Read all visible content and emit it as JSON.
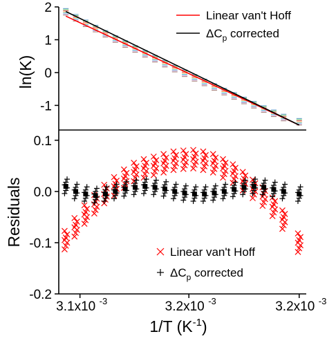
{
  "chart_data": [
    {
      "type": "line",
      "panel": "top",
      "ylabel": "ln(K)",
      "xlabel": "",
      "ylim": [
        -1.75,
        2.0
      ],
      "yticks": [
        -1,
        0,
        1,
        2
      ],
      "ytick_labels": [
        "-1",
        "0",
        "1",
        "2"
      ],
      "grid": false,
      "legend_position": "top-right",
      "series": [
        {
          "name": "Linear van't Hoff",
          "kind": "fit-line",
          "color": "#ff0000",
          "x": [
            0.003085,
            0.00325
          ],
          "y": [
            1.72,
            -1.6
          ]
        },
        {
          "name": "ΔCₚ corrected",
          "legend_main": "ΔC",
          "legend_sub": "p",
          "legend_tail": " corrected",
          "kind": "fit-line",
          "color": "#000000",
          "x": [
            0.003085,
            0.00325
          ],
          "y": [
            1.86,
            -1.6
          ]
        }
      ],
      "data_points": {
        "x": [
          0.003085,
          0.003092,
          0.003099,
          0.003106,
          0.003113,
          0.00312,
          0.003127,
          0.003134,
          0.003141,
          0.003148,
          0.003155,
          0.003162,
          0.003169,
          0.003176,
          0.003183,
          0.00319,
          0.003197,
          0.003204,
          0.003211,
          0.003218,
          0.003225,
          0.003232,
          0.003239,
          0.00325
        ],
        "y": [
          1.85,
          1.67,
          1.5,
          1.34,
          1.18,
          1.02,
          0.87,
          0.72,
          0.57,
          0.42,
          0.27,
          0.12,
          -0.02,
          -0.16,
          -0.3,
          -0.44,
          -0.58,
          -0.71,
          -0.85,
          -0.98,
          -1.11,
          -1.24,
          -1.37,
          -1.5
        ]
      }
    },
    {
      "type": "scatter",
      "panel": "bottom",
      "ylabel": "Residuals",
      "xlabel": "1/T (K⁻¹)",
      "xlabel_main": "1/T (K",
      "xlabel_sup": "-1",
      "xlabel_tail": ")",
      "ylim": [
        -0.2,
        0.12
      ],
      "yticks": [
        -0.2,
        -0.1,
        0.0,
        0.1
      ],
      "ytick_labels": [
        "-0.2",
        "-0.1",
        "0.0",
        "0.1"
      ],
      "xlim": [
        0.00308,
        0.003255
      ],
      "xticks": [
        0.003095,
        0.003172,
        0.00325
      ],
      "xtick_labels": [
        "3.1x10",
        "3.2x10",
        "3.2x10"
      ],
      "xtick_exponent": "-3",
      "grid": false,
      "legend_position": "bottom-center",
      "series": [
        {
          "name": "Linear van't Hoff",
          "marker": "x",
          "color": "#ff0000",
          "x": [
            0.003085,
            0.003092,
            0.003099,
            0.003106,
            0.003113,
            0.00312,
            0.003127,
            0.003134,
            0.003141,
            0.003148,
            0.003155,
            0.003162,
            0.003169,
            0.003176,
            0.003183,
            0.00319,
            0.003197,
            0.003204,
            0.003211,
            0.003218,
            0.003225,
            0.003232,
            0.003239,
            0.00325
          ],
          "y": [
            -0.095,
            -0.07,
            -0.045,
            -0.025,
            -0.005,
            0.01,
            0.025,
            0.038,
            0.045,
            0.05,
            0.055,
            0.06,
            0.062,
            0.063,
            0.06,
            0.055,
            0.045,
            0.035,
            0.02,
            0.005,
            -0.01,
            -0.03,
            -0.055,
            -0.1
          ]
        },
        {
          "name": "ΔCₚ corrected",
          "legend_main": "ΔC",
          "legend_sub": "p",
          "legend_tail": " corrected",
          "marker": "+",
          "color": "#000000",
          "x": [
            0.003085,
            0.003092,
            0.003099,
            0.003106,
            0.003113,
            0.00312,
            0.003127,
            0.003134,
            0.003141,
            0.003148,
            0.003155,
            0.003162,
            0.003169,
            0.003176,
            0.003183,
            0.00319,
            0.003197,
            0.003204,
            0.003211,
            0.003218,
            0.003225,
            0.003232,
            0.003239,
            0.00325
          ],
          "y": [
            0.01,
            0.0,
            -0.005,
            -0.008,
            -0.005,
            0.0,
            0.005,
            0.008,
            0.01,
            0.008,
            0.005,
            0.0,
            -0.003,
            -0.005,
            -0.005,
            -0.003,
            0.0,
            0.004,
            0.008,
            0.01,
            0.008,
            0.004,
            0.0,
            -0.005
          ]
        }
      ]
    }
  ]
}
